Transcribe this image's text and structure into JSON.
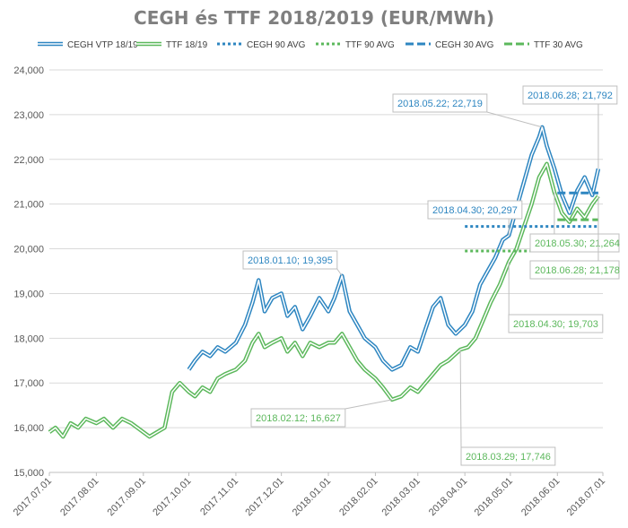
{
  "chart_data": {
    "type": "line",
    "title": "CEGH és TTF 2018/2019 (EUR/MWh)",
    "xlabel": "",
    "ylabel": "",
    "ylim": [
      15000,
      24000
    ],
    "y_ticks": [
      "15,000",
      "16,000",
      "17,000",
      "18,000",
      "19,000",
      "20,000",
      "21,000",
      "22,000",
      "23,000",
      "24,000"
    ],
    "x_ticks": [
      "2017.07.01",
      "2017.08.01",
      "2017.09.01",
      "2017.10.01",
      "2017.11.01",
      "2017.12.01",
      "2018.01.01",
      "2018.02.01",
      "2018.03.01",
      "2018.04.01",
      "2018.05.01",
      "2018.06.01",
      "2018.07.01"
    ],
    "grid": "horizontal",
    "legend_position": "top",
    "series": [
      {
        "name": "CEGH VTP 18/19",
        "color": "#2e86c1",
        "style": "double-line",
        "x": [
          "2017.10.01",
          "2017.10.05",
          "2017.10.10",
          "2017.10.15",
          "2017.10.20",
          "2017.10.25",
          "2017.11.01",
          "2017.11.07",
          "2017.11.12",
          "2017.11.16",
          "2017.11.20",
          "2017.11.25",
          "2017.12.01",
          "2017.12.05",
          "2017.12.10",
          "2017.12.15",
          "2017.12.20",
          "2017.12.26",
          "2018.01.01",
          "2018.01.05",
          "2018.01.10",
          "2018.01.15",
          "2018.01.20",
          "2018.01.25",
          "2018.02.01",
          "2018.02.06",
          "2018.02.12",
          "2018.02.18",
          "2018.02.24",
          "2018.03.01",
          "2018.03.06",
          "2018.03.11",
          "2018.03.16",
          "2018.03.21",
          "2018.03.26",
          "2018.04.01",
          "2018.04.06",
          "2018.04.11",
          "2018.04.16",
          "2018.04.21",
          "2018.04.26",
          "2018.04.30",
          "2018.05.05",
          "2018.05.10",
          "2018.05.15",
          "2018.05.20",
          "2018.05.22",
          "2018.05.25",
          "2018.05.30",
          "2018.06.04",
          "2018.06.09",
          "2018.06.14",
          "2018.06.19",
          "2018.06.24",
          "2018.06.28"
        ],
        "values": [
          17300,
          17500,
          17700,
          17600,
          17800,
          17700,
          17900,
          18300,
          18800,
          19300,
          18600,
          18900,
          19000,
          18500,
          18700,
          18200,
          18500,
          18900,
          18600,
          18900,
          19395,
          18600,
          18300,
          18000,
          17800,
          17500,
          17300,
          17400,
          17800,
          17700,
          18200,
          18700,
          18900,
          18300,
          18100,
          18300,
          18600,
          19200,
          19500,
          19800,
          20200,
          20297,
          20900,
          21500,
          22100,
          22500,
          22719,
          22300,
          21800,
          21200,
          20800,
          21300,
          21600,
          21200,
          21792
        ]
      },
      {
        "name": "TTF 18/19",
        "color": "#5cb85c",
        "style": "double-line",
        "x": [
          "2017.07.01",
          "2017.07.05",
          "2017.07.10",
          "2017.07.15",
          "2017.07.20",
          "2017.07.25",
          "2017.08.01",
          "2017.08.06",
          "2017.08.12",
          "2017.08.18",
          "2017.08.24",
          "2017.09.01",
          "2017.09.05",
          "2017.09.10",
          "2017.09.15",
          "2017.09.20",
          "2017.09.25",
          "2017.10.01",
          "2017.10.05",
          "2017.10.10",
          "2017.10.15",
          "2017.10.20",
          "2017.10.25",
          "2017.11.01",
          "2017.11.07",
          "2017.11.12",
          "2017.11.16",
          "2017.11.20",
          "2017.11.25",
          "2017.12.01",
          "2017.12.05",
          "2017.12.10",
          "2017.12.15",
          "2017.12.20",
          "2017.12.26",
          "2018.01.01",
          "2018.01.05",
          "2018.01.10",
          "2018.01.15",
          "2018.01.20",
          "2018.01.25",
          "2018.02.01",
          "2018.02.06",
          "2018.02.12",
          "2018.02.18",
          "2018.02.24",
          "2018.03.01",
          "2018.03.06",
          "2018.03.11",
          "2018.03.16",
          "2018.03.21",
          "2018.03.29",
          "2018.04.03",
          "2018.04.08",
          "2018.04.13",
          "2018.04.18",
          "2018.04.24",
          "2018.04.30",
          "2018.05.05",
          "2018.05.10",
          "2018.05.15",
          "2018.05.20",
          "2018.05.25",
          "2018.05.30",
          "2018.06.04",
          "2018.06.09",
          "2018.06.14",
          "2018.06.19",
          "2018.06.24",
          "2018.06.28"
        ],
        "values": [
          15900,
          16000,
          15800,
          16100,
          16000,
          16200,
          16100,
          16200,
          16000,
          16200,
          16100,
          15900,
          15800,
          15900,
          16000,
          16800,
          17000,
          16800,
          16700,
          16900,
          16800,
          17100,
          17200,
          17300,
          17500,
          17900,
          18100,
          17800,
          17900,
          18000,
          17700,
          17900,
          17600,
          17900,
          17800,
          17900,
          17900,
          18100,
          17800,
          17500,
          17300,
          17100,
          16900,
          16627,
          16700,
          16900,
          16800,
          17000,
          17200,
          17400,
          17500,
          17746,
          17800,
          18000,
          18400,
          18800,
          19200,
          19703,
          20000,
          20500,
          21000,
          21600,
          21900,
          21264,
          20800,
          20600,
          20900,
          20700,
          21000,
          21178
        ]
      },
      {
        "name": "CEGH 90 AVG",
        "color": "#2e86c1",
        "style": "dotted",
        "x": [
          "2018.04.01",
          "2018.06.28"
        ],
        "values": [
          20500,
          20500
        ]
      },
      {
        "name": "TTF 90 AVG",
        "color": "#5cb85c",
        "style": "dotted",
        "x": [
          "2018.04.01",
          "2018.06.28"
        ],
        "values": [
          19950,
          19950
        ]
      },
      {
        "name": "CEGH 30 AVG",
        "color": "#2e86c1",
        "style": "dashed",
        "x": [
          "2018.06.01",
          "2018.06.28"
        ],
        "values": [
          21250,
          21250
        ]
      },
      {
        "name": "TTF 30 AVG",
        "color": "#5cb85c",
        "style": "dashed",
        "x": [
          "2018.06.01",
          "2018.06.28"
        ],
        "values": [
          20650,
          20650
        ]
      }
    ],
    "annotations": [
      {
        "label": "2018.05.22; 22,719",
        "series": "CEGH VTP 18/19",
        "x": "2018.05.22",
        "y": 22719,
        "color": "#2e86c1",
        "side": "up-left"
      },
      {
        "label": "2018.06.28; 21,792",
        "series": "CEGH VTP 18/19",
        "x": "2018.06.28",
        "y": 21792,
        "color": "#2e86c1",
        "side": "up-left"
      },
      {
        "label": "2018.01.10; 19,395",
        "series": "CEGH VTP 18/19",
        "x": "2018.01.10",
        "y": 19395,
        "color": "#2e86c1",
        "side": "up-left"
      },
      {
        "label": "2018.04.30; 20,297",
        "series": "CEGH VTP 18/19",
        "x": "2018.04.30",
        "y": 20297,
        "color": "#2e86c1",
        "side": "up-left"
      },
      {
        "label": "2018.05.30; 21,264",
        "series": "TTF 18/19",
        "x": "2018.05.30",
        "y": 21264,
        "color": "#5cb85c",
        "side": "down-right"
      },
      {
        "label": "2018.06.28; 21,178",
        "series": "TTF 18/19",
        "x": "2018.06.28",
        "y": 21178,
        "color": "#5cb85c",
        "side": "down"
      },
      {
        "label": "2018.04.30; 19,703",
        "series": "TTF 18/19",
        "x": "2018.04.30",
        "y": 19703,
        "color": "#5cb85c",
        "side": "down-right"
      },
      {
        "label": "2018.02.12; 16,627",
        "series": "TTF 18/19",
        "x": "2018.02.12",
        "y": 16627,
        "color": "#5cb85c",
        "side": "down-left"
      },
      {
        "label": "2018.03.29; 17,746",
        "series": "TTF 18/19",
        "x": "2018.03.29",
        "y": 17746,
        "color": "#5cb85c",
        "side": "down"
      }
    ]
  }
}
